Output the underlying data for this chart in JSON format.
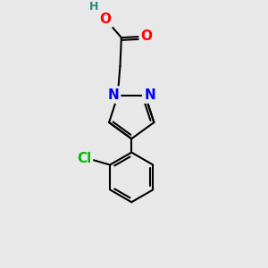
{
  "background_color": "#e8e8e8",
  "bond_color": "#000000",
  "bond_width": 1.5,
  "atom_colors": {
    "O": "#ff0000",
    "N": "#0000ff",
    "Cl": "#00bb00",
    "H": "#2a8a7a",
    "C": "#000000"
  },
  "font_size_atoms": 11,
  "font_size_h": 9,
  "figsize": [
    3.0,
    3.0
  ],
  "dpi": 100
}
